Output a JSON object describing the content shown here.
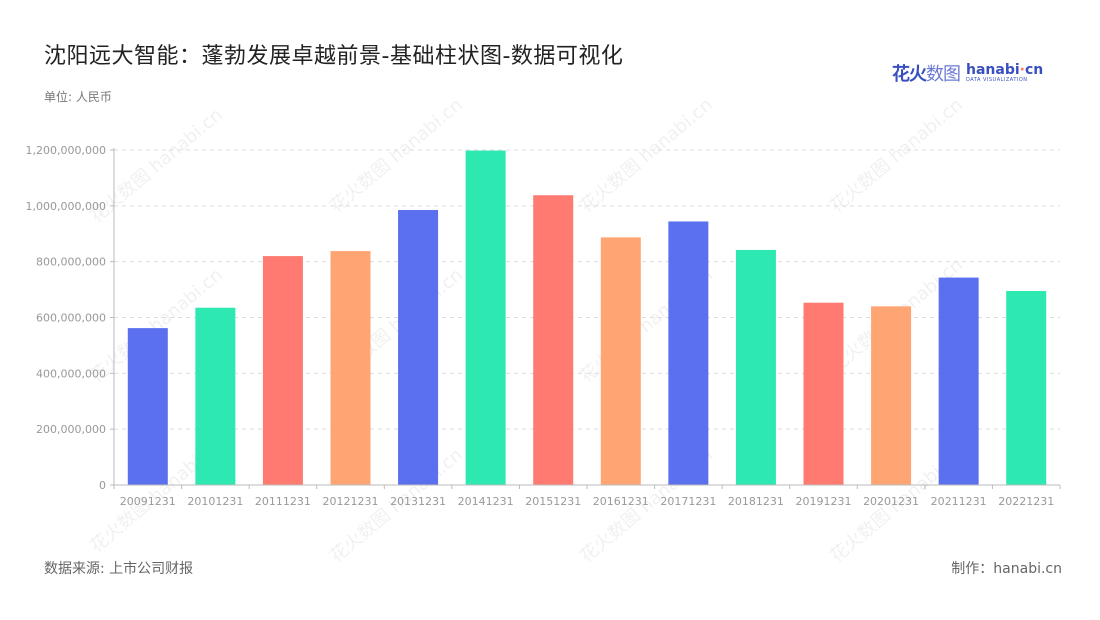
{
  "title": "沈阳远大智能：蓬勃发展卓越前景-基础柱状图-数据可视化",
  "unit": "单位: 人民币",
  "logo": {
    "cn_bold": "花火",
    "cn_light": "数图",
    "en": "hanabi",
    "en_dot": "·",
    "en_tail": "cn",
    "tagline": "DATA VISUALIZATION"
  },
  "watermark": "花火数图 hanabi.cn",
  "footer": {
    "source": "数据来源: 上市公司财报",
    "credit": "制作：hanabi.cn"
  },
  "colors": {
    "blue": "#5a70ee",
    "green": "#2ee8b1",
    "red": "#ff7b72",
    "orange": "#ffa574",
    "grid": "#dddddd",
    "axis": "#bbbbbb",
    "tick": "#999999"
  },
  "chart_data": {
    "type": "bar",
    "categories": [
      "20091231",
      "20101231",
      "20111231",
      "20121231",
      "20131231",
      "20141231",
      "20151231",
      "20161231",
      "20171231",
      "20181231",
      "20191231",
      "20201231",
      "20211231",
      "20221231"
    ],
    "values": [
      562000000,
      635000000,
      820000000,
      838000000,
      985000000,
      1198000000,
      1038000000,
      887000000,
      944000000,
      842000000,
      653000000,
      640000000,
      743000000,
      695000000
    ],
    "bar_colors": [
      "#5a70ee",
      "#2ee8b1",
      "#ff7b72",
      "#ffa574",
      "#5a70ee",
      "#2ee8b1",
      "#ff7b72",
      "#ffa574",
      "#5a70ee",
      "#2ee8b1",
      "#ff7b72",
      "#ffa574",
      "#5a70ee",
      "#2ee8b1"
    ],
    "ylim": [
      0,
      1200000000
    ],
    "yticks": [
      0,
      200000000,
      400000000,
      600000000,
      800000000,
      1000000000,
      1200000000
    ],
    "ytick_labels": [
      "0",
      "200,000,000",
      "400,000,000",
      "600,000,000",
      "800,000,000",
      "1,000,000,000",
      "1,200,000,000"
    ],
    "grid": true,
    "legend": "none"
  }
}
